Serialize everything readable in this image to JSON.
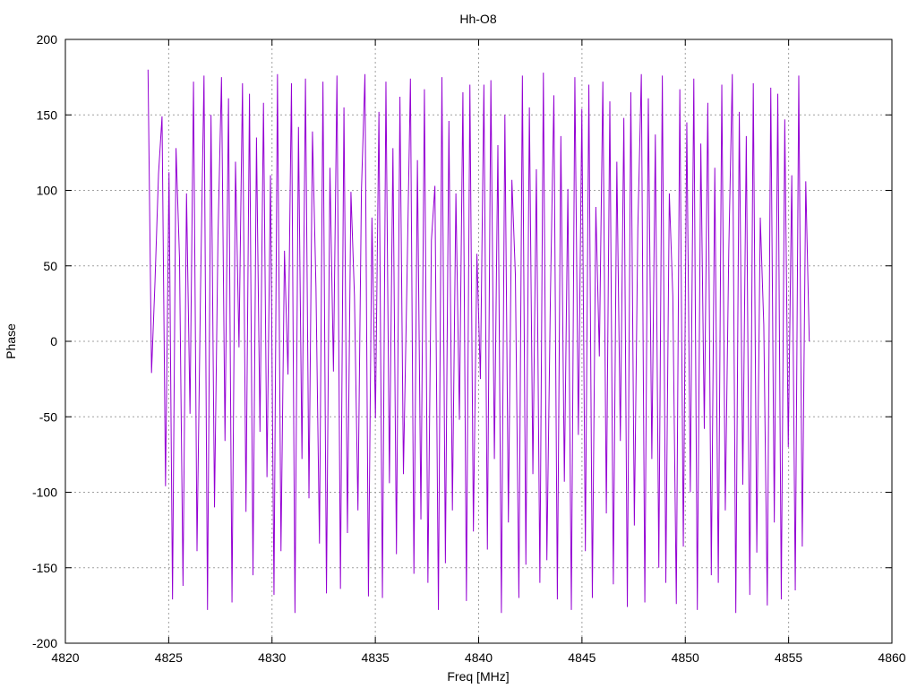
{
  "chart_data": {
    "type": "line",
    "title": "Hh-O8",
    "xlabel": "Freq [MHz]",
    "ylabel": "Phase",
    "xlim": [
      4820,
      4860
    ],
    "ylim": [
      -200,
      200
    ],
    "xticks": [
      4820,
      4825,
      4830,
      4835,
      4840,
      4845,
      4850,
      4855,
      4860
    ],
    "yticks": [
      -200,
      -150,
      -100,
      -50,
      0,
      50,
      100,
      150,
      200
    ],
    "grid": true,
    "legend": "none",
    "series": [
      {
        "color": "#9400d3",
        "x_start": 4824.0,
        "x_end": 4856.0,
        "description_values": "phase wraps rapidly between -180 and 180 degrees across the band",
        "y": [
          180,
          -21,
          40,
          111,
          149,
          -96,
          112,
          -171,
          128,
          55,
          -162,
          98,
          -48,
          172,
          -139,
          33,
          176,
          -178,
          150,
          -110,
          70,
          175,
          -66,
          161,
          -173,
          119,
          -4,
          171,
          -113,
          164,
          -155,
          135,
          -60,
          158,
          -90,
          110,
          -168,
          177,
          -139,
          60,
          -22,
          171,
          -180,
          142,
          -78,
          174,
          -104,
          139,
          36,
          -134,
          172,
          -167,
          115,
          -20,
          176,
          -164,
          155,
          -127,
          99,
          30,
          -112,
          100,
          177,
          -169,
          82,
          -51,
          152,
          -170,
          172,
          -94,
          128,
          -141,
          162,
          -88,
          39,
          174,
          -154,
          120,
          -118,
          167,
          -160,
          67,
          103,
          -178,
          175,
          -147,
          146,
          -112,
          98,
          -52,
          165,
          -172,
          170,
          -126,
          58,
          -25,
          170,
          -138,
          173,
          -78,
          130,
          -180,
          150,
          -120,
          107,
          44,
          -170,
          176,
          -148,
          155,
          -88,
          114,
          -160,
          178,
          -145,
          28,
          163,
          -171,
          136,
          -93,
          101,
          -178,
          175,
          -62,
          154,
          -139,
          170,
          -170,
          89,
          -10,
          172,
          -114,
          159,
          -161,
          119,
          -66,
          148,
          -176,
          165,
          -122,
          75,
          177,
          -173,
          161,
          -78,
          137,
          -150,
          176,
          -160,
          98,
          30,
          -174,
          167,
          -136,
          145,
          -100,
          174,
          -178,
          131,
          -58,
          158,
          -155,
          115,
          -160,
          170,
          -112,
          61,
          177,
          -180,
          152,
          -95,
          136,
          -168,
          171,
          -140,
          82,
          11,
          -175,
          168,
          -120,
          164,
          -171,
          147,
          -70,
          110,
          -165,
          176,
          -136,
          106,
          0
        ]
      }
    ]
  }
}
